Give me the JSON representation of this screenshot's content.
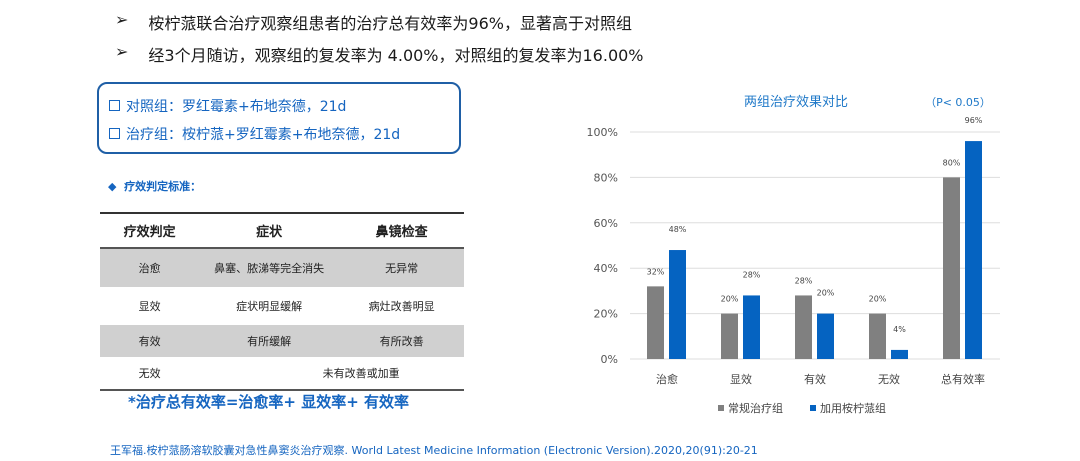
{
  "bullets": [
    "桉柠蒎联合治疗观察组患者的治疗总有效率为96%，显著高于对照组",
    "经3个月随访，观察组的复发率为 4.00%，对照组的复发率为16.00%"
  ],
  "bullet_icon": "arrow-right-icon",
  "groups": [
    "对照组：罗红霉素+布地奈德，21d",
    "治疗组：桉柠蒎+罗红霉素+布地奈德，21d"
  ],
  "criteria_title": "疗效判定标准：",
  "table": {
    "headers": [
      "疗效判定",
      "症状",
      "鼻镜检查"
    ],
    "rows": [
      [
        "治愈",
        "鼻塞、脓涕等完全消失",
        "无异常"
      ],
      [
        "显效",
        "症状明显缓解",
        "病灶改善明显"
      ],
      [
        "有效",
        "有所缓解",
        "有所改善"
      ],
      [
        "无效",
        "未有改善或加重"
      ]
    ]
  },
  "formula": "*治疗总有效率=治愈率+ 显效率+ 有效率",
  "citation": "王军福.桉柠蒎肠溶软胶囊对急性鼻窦炎治疗观察. World Latest Medicine Information (Electronic Version).2020,20(91):20-21",
  "chart_data": {
    "type": "bar",
    "title": "两组治疗效果对比",
    "annotation": "（P< 0.05）",
    "categories": [
      "治愈",
      "显效",
      "有效",
      "无效",
      "总有效率"
    ],
    "series": [
      {
        "name": "常规治疗组",
        "color": "#808080",
        "values": [
          32,
          20,
          28,
          20,
          80
        ]
      },
      {
        "name": "加用桉柠蒎组",
        "color": "#0563c1",
        "values": [
          48,
          28,
          20,
          4,
          96
        ]
      }
    ],
    "yticks": [
      "0%",
      "20%",
      "40%",
      "60%",
      "80%",
      "100%"
    ],
    "ylim": [
      0,
      100
    ],
    "legend": "bottom"
  }
}
